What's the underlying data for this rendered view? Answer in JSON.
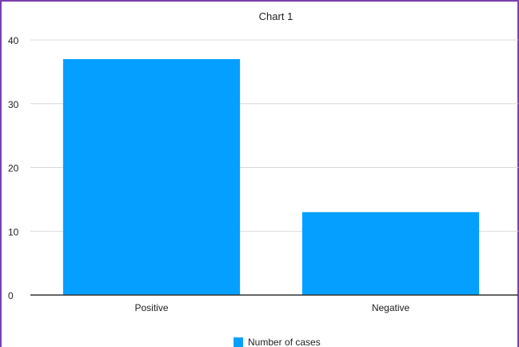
{
  "chart_data": {
    "type": "bar",
    "title": "Chart 1",
    "categories": [
      "Positive",
      "Negative"
    ],
    "series": [
      {
        "name": "Number of cases",
        "values": [
          37,
          13
        ]
      }
    ],
    "ylim": [
      0,
      40
    ],
    "yticks": [
      0,
      10,
      20,
      30,
      40
    ],
    "grid": true,
    "legend": "bottom-center",
    "colors": {
      "bar": "#05a0ff",
      "grid": "#d9d9d9",
      "axis": "#333333",
      "frame": "#7a3fb0"
    }
  }
}
